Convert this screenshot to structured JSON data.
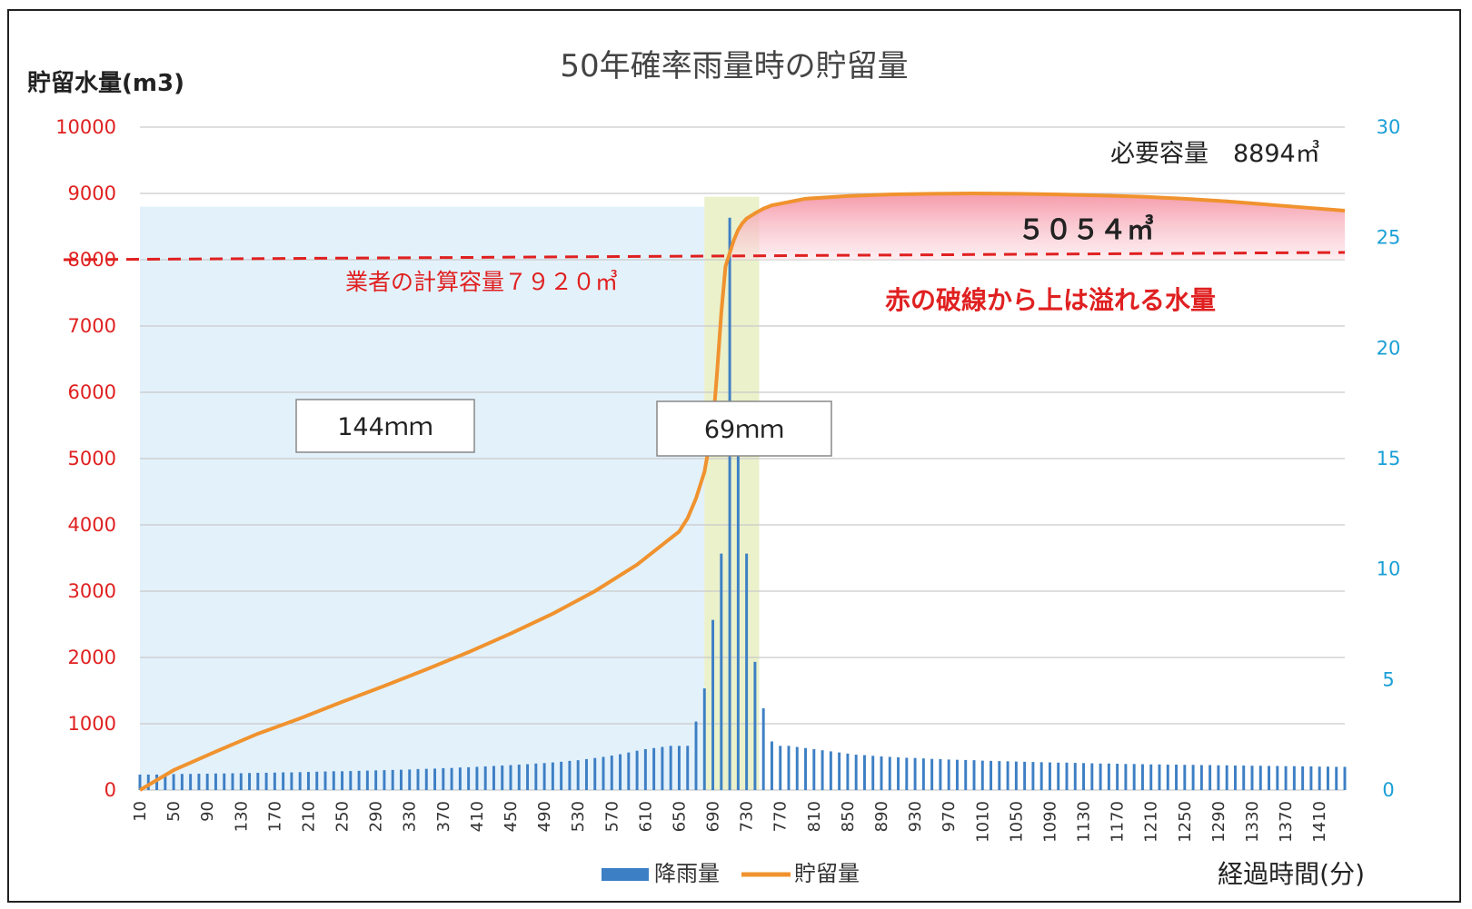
{
  "chart_data": {
    "type": "bar+line",
    "title": "50年確率雨量時の貯留量",
    "ylabel_left": "貯留水量(m3)",
    "xlabel": "経過時間(分)",
    "ylim_left": [
      0,
      10000
    ],
    "ylim_right": [
      0,
      30
    ],
    "yticks_left": [
      "0",
      "1000",
      "2000",
      "3000",
      "4000",
      "5000",
      "6000",
      "7000",
      "8000",
      "9000",
      "10000"
    ],
    "yticks_right": [
      "0",
      "5",
      "10",
      "15",
      "20",
      "25",
      "30"
    ],
    "x_tick_labels": [
      "10",
      "50",
      "90",
      "130",
      "170",
      "210",
      "250",
      "290",
      "330",
      "370",
      "410",
      "450",
      "490",
      "530",
      "570",
      "610",
      "650",
      "690",
      "730",
      "770",
      "810",
      "850",
      "890",
      "930",
      "970",
      "1010",
      "1050",
      "1090",
      "1130",
      "1170",
      "1210",
      "1250",
      "1290",
      "1330",
      "1370",
      "1410"
    ],
    "x_range": [
      10,
      1440
    ],
    "x_step": 10,
    "grid": true,
    "legend_position": "bottom",
    "series": [
      {
        "name": "降雨量",
        "type": "bar",
        "axis": "right",
        "color": "#3d7fc4",
        "x": [
          10,
          20,
          30,
          40,
          50,
          60,
          70,
          80,
          90,
          100,
          110,
          120,
          130,
          140,
          150,
          160,
          170,
          180,
          190,
          200,
          210,
          220,
          230,
          240,
          250,
          260,
          270,
          280,
          290,
          300,
          310,
          320,
          330,
          340,
          350,
          360,
          370,
          380,
          390,
          400,
          410,
          420,
          430,
          440,
          450,
          460,
          470,
          480,
          490,
          500,
          510,
          520,
          530,
          540,
          550,
          560,
          570,
          580,
          590,
          600,
          610,
          620,
          630,
          640,
          650,
          660,
          670,
          680,
          690,
          700,
          710,
          720,
          730,
          740,
          750,
          760,
          770,
          780,
          790,
          800,
          810,
          820,
          830,
          840,
          850,
          860,
          870,
          880,
          890,
          900,
          910,
          920,
          930,
          940,
          950,
          960,
          970,
          980,
          990,
          1000,
          1010,
          1020,
          1030,
          1040,
          1050,
          1060,
          1070,
          1080,
          1090,
          1100,
          1110,
          1120,
          1130,
          1140,
          1150,
          1160,
          1170,
          1180,
          1190,
          1200,
          1210,
          1220,
          1230,
          1240,
          1250,
          1260,
          1270,
          1280,
          1290,
          1300,
          1310,
          1320,
          1330,
          1340,
          1350,
          1360,
          1370,
          1380,
          1390,
          1400,
          1410,
          1420,
          1430,
          1440
        ],
        "values": [
          0.7,
          0.7,
          0.7,
          0.72,
          0.72,
          0.73,
          0.73,
          0.74,
          0.74,
          0.75,
          0.75,
          0.76,
          0.76,
          0.77,
          0.78,
          0.78,
          0.79,
          0.8,
          0.8,
          0.81,
          0.82,
          0.83,
          0.84,
          0.85,
          0.85,
          0.86,
          0.87,
          0.88,
          0.89,
          0.9,
          0.91,
          0.92,
          0.93,
          0.95,
          0.96,
          0.97,
          0.99,
          1.0,
          1.02,
          1.03,
          1.05,
          1.07,
          1.09,
          1.11,
          1.13,
          1.15,
          1.17,
          1.2,
          1.22,
          1.25,
          1.28,
          1.32,
          1.35,
          1.4,
          1.45,
          1.5,
          1.56,
          1.62,
          1.7,
          1.78,
          1.85,
          1.9,
          1.95,
          2.0,
          2.0,
          2.0,
          3.1,
          4.6,
          7.7,
          10.7,
          25.9,
          15.2,
          10.7,
          5.8,
          3.7,
          2.2,
          2.0,
          2.0,
          1.95,
          1.9,
          1.85,
          1.8,
          1.75,
          1.7,
          1.65,
          1.6,
          1.58,
          1.55,
          1.52,
          1.5,
          1.48,
          1.46,
          1.45,
          1.43,
          1.41,
          1.4,
          1.38,
          1.37,
          1.36,
          1.35,
          1.33,
          1.32,
          1.31,
          1.3,
          1.29,
          1.28,
          1.27,
          1.26,
          1.25,
          1.24,
          1.24,
          1.23,
          1.22,
          1.21,
          1.2,
          1.2,
          1.19,
          1.18,
          1.18,
          1.17,
          1.16,
          1.16,
          1.15,
          1.15,
          1.14,
          1.14,
          1.13,
          1.13,
          1.12,
          1.12,
          1.11,
          1.11,
          1.1,
          1.1,
          1.09,
          1.09,
          1.08,
          1.08,
          1.07,
          1.07,
          1.06,
          1.06,
          1.05,
          1.05
        ]
      },
      {
        "name": "貯留量",
        "type": "line",
        "axis": "left",
        "color": "#f0922e",
        "x": [
          0,
          50,
          100,
          150,
          200,
          250,
          300,
          350,
          400,
          450,
          500,
          550,
          600,
          650,
          660,
          670,
          680,
          690,
          695,
          700,
          705,
          710,
          715,
          720,
          725,
          730,
          740,
          750,
          760,
          780,
          800,
          850,
          900,
          950,
          1000,
          1050,
          1100,
          1150,
          1200,
          1250,
          1300,
          1350,
          1400,
          1440
        ],
        "values": [
          0,
          300,
          580,
          850,
          1080,
          1330,
          1570,
          1820,
          2080,
          2360,
          2660,
          3000,
          3400,
          3900,
          4100,
          4400,
          4800,
          5500,
          6300,
          7200,
          7900,
          8100,
          8300,
          8450,
          8550,
          8620,
          8700,
          8770,
          8820,
          8870,
          8920,
          8960,
          8985,
          8995,
          9000,
          8995,
          8985,
          8970,
          8950,
          8920,
          8880,
          8830,
          8780,
          8740
        ]
      }
    ],
    "annotations": {
      "required_capacity": "必要容量　8894㎥",
      "overflow_volume": "５０５４㎥",
      "contractor_capacity": "業者の計算容量７９２０㎥",
      "contractor_line_value": 8000,
      "overflow_note": "赤の破線から上は溢れる水量",
      "box1": "144ｍｍ",
      "box2": "69ｍｍ",
      "shade_blue_x": [
        0,
        680
      ],
      "shade_green_x": [
        680,
        745
      ]
    },
    "colors": {
      "left_axis": "#e02020",
      "right_axis": "#1a9fd6",
      "dashed_line": "#e02020",
      "overflow_fill": "#f7a7b4",
      "blue_shade": "#e3f1fb",
      "green_shade": "#e6efc2"
    }
  }
}
